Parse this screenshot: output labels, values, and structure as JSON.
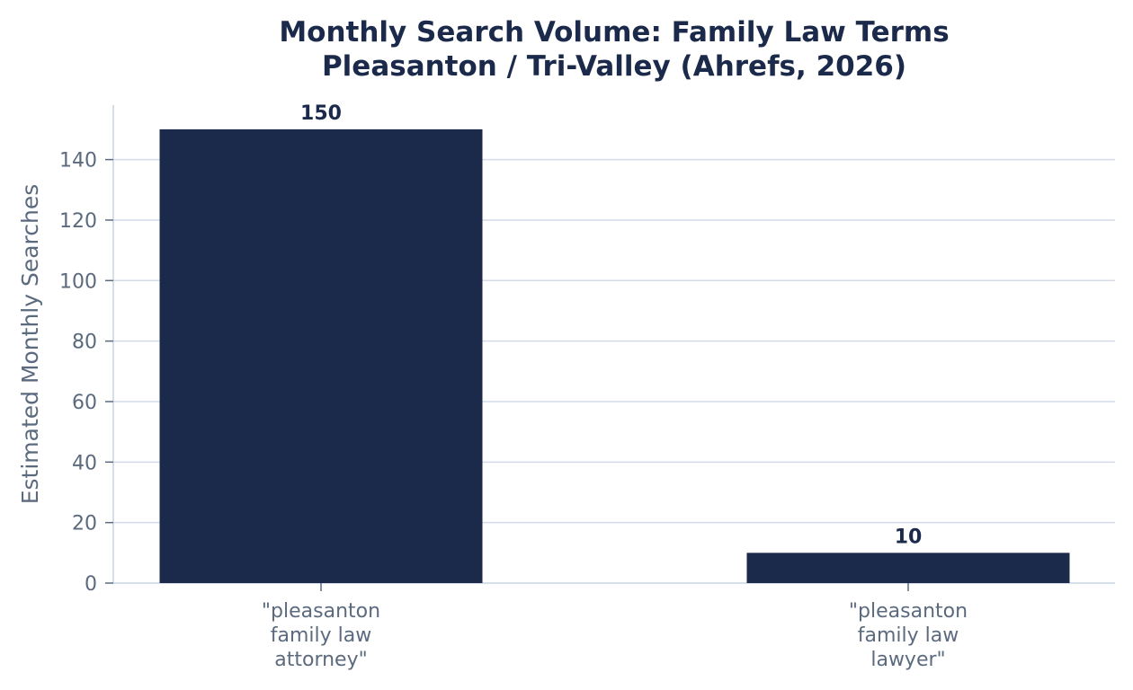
{
  "chart_data": {
    "type": "bar",
    "title_lines": [
      "Monthly Search Volume: Family Law Terms",
      "Pleasanton / Tri-Valley (Ahrefs, 2026)"
    ],
    "ylabel": "Estimated Monthly Searches",
    "xlabel": "",
    "categories": [
      "\"pleasanton family law attorney\"",
      "\"pleasanton family law lawyer\""
    ],
    "category_lines": [
      [
        "\"pleasanton",
        "family law",
        "attorney\""
      ],
      [
        "\"pleasanton",
        "family law",
        "lawyer\""
      ]
    ],
    "values": [
      150,
      10
    ],
    "value_labels": [
      "150",
      "10"
    ],
    "ylim": [
      0,
      158
    ],
    "yticks": [
      0,
      20,
      40,
      60,
      80,
      100,
      120,
      140
    ],
    "grid": true,
    "bar_color": "#1b2a4a"
  }
}
